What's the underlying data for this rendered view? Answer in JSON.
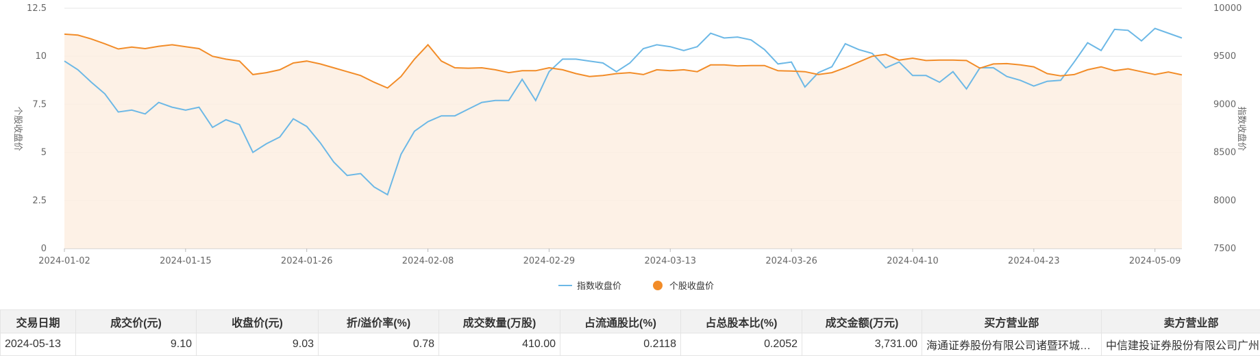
{
  "chart_data": {
    "type": "line",
    "x": [
      "2024-01-02",
      "2024-01-03",
      "2024-01-04",
      "2024-01-05",
      "2024-01-08",
      "2024-01-09",
      "2024-01-10",
      "2024-01-11",
      "2024-01-12",
      "2024-01-15",
      "2024-01-16",
      "2024-01-17",
      "2024-01-18",
      "2024-01-19",
      "2024-01-22",
      "2024-01-23",
      "2024-01-24",
      "2024-01-25",
      "2024-01-26",
      "2024-01-29",
      "2024-01-30",
      "2024-01-31",
      "2024-02-01",
      "2024-02-02",
      "2024-02-05",
      "2024-02-06",
      "2024-02-07",
      "2024-02-08",
      "2024-02-19",
      "2024-02-20",
      "2024-02-21",
      "2024-02-22",
      "2024-02-23",
      "2024-02-26",
      "2024-02-27",
      "2024-02-28",
      "2024-02-29",
      "2024-03-01",
      "2024-03-04",
      "2024-03-05",
      "2024-03-06",
      "2024-03-07",
      "2024-03-08",
      "2024-03-11",
      "2024-03-12",
      "2024-03-13",
      "2024-03-14",
      "2024-03-15",
      "2024-03-18",
      "2024-03-19",
      "2024-03-20",
      "2024-03-21",
      "2024-03-22",
      "2024-03-25",
      "2024-03-26",
      "2024-03-27",
      "2024-03-28",
      "2024-03-29",
      "2024-04-01",
      "2024-04-02",
      "2024-04-03",
      "2024-04-08",
      "2024-04-09",
      "2024-04-10",
      "2024-04-11",
      "2024-04-12",
      "2024-04-15",
      "2024-04-16",
      "2024-04-17",
      "2024-04-18",
      "2024-04-19",
      "2024-04-22",
      "2024-04-23",
      "2024-04-24",
      "2024-04-25",
      "2024-04-26",
      "2024-04-29",
      "2024-04-30",
      "2024-05-06",
      "2024-05-07",
      "2024-05-08",
      "2024-05-09",
      "2024-05-10",
      "2024-05-13"
    ],
    "x_ticks": [
      "2024-01-02",
      "2024-01-15",
      "2024-01-26",
      "2024-02-08",
      "2024-02-29",
      "2024-03-13",
      "2024-03-26",
      "2024-04-10",
      "2024-04-23",
      "2024-05-09"
    ],
    "y_left": {
      "label": "个股收盘价",
      "lim": [
        0,
        12.5
      ],
      "ticks": [
        "0",
        "2.5",
        "5",
        "7.5",
        "10",
        "12.5"
      ]
    },
    "y_right": {
      "label": "指数收盘价",
      "lim": [
        7500,
        10000
      ],
      "ticks": [
        "7500",
        "8000",
        "8500",
        "9000",
        "9500",
        "10000"
      ]
    },
    "series": [
      {
        "name": "指数收盘价",
        "axis": "right",
        "color": "#6cb8e6",
        "values": [
          9450,
          9360,
          9230,
          9110,
          8920,
          8940,
          8900,
          9020,
          8970,
          8940,
          8970,
          8760,
          8840,
          8790,
          8500,
          8590,
          8660,
          8850,
          8770,
          8600,
          8400,
          8260,
          8280,
          8140,
          8060,
          8480,
          8720,
          8820,
          8880,
          8880,
          8950,
          9020,
          9040,
          9040,
          9260,
          9040,
          9340,
          9470,
          9470,
          9450,
          9430,
          9340,
          9430,
          9580,
          9620,
          9600,
          9560,
          9600,
          9740,
          9690,
          9700,
          9670,
          9570,
          9420,
          9440,
          9180,
          9330,
          9390,
          9630,
          9570,
          9530,
          9380,
          9440,
          9300,
          9300,
          9230,
          9340,
          9160,
          9380,
          9380,
          9290,
          9250,
          9190,
          9240,
          9250,
          9440,
          9640,
          9560,
          9780,
          9770,
          9660,
          9790,
          9740,
          9690
        ]
      },
      {
        "name": "个股收盘价",
        "axis": "left",
        "color": "#f28c28",
        "values": [
          11.15,
          11.1,
          10.9,
          10.65,
          10.38,
          10.48,
          10.4,
          10.52,
          10.6,
          10.5,
          10.4,
          10.0,
          9.85,
          9.75,
          9.05,
          9.15,
          9.3,
          9.65,
          9.75,
          9.6,
          9.4,
          9.2,
          9.0,
          8.65,
          8.35,
          8.95,
          9.85,
          10.6,
          9.75,
          9.4,
          9.38,
          9.4,
          9.3,
          9.15,
          9.25,
          9.25,
          9.4,
          9.3,
          9.1,
          8.95,
          9.0,
          9.1,
          9.15,
          9.05,
          9.3,
          9.25,
          9.3,
          9.2,
          9.55,
          9.55,
          9.5,
          9.52,
          9.52,
          9.25,
          9.23,
          9.2,
          9.05,
          9.15,
          9.4,
          9.7,
          10.0,
          10.1,
          9.8,
          9.9,
          9.78,
          9.8,
          9.8,
          9.78,
          9.38,
          9.6,
          9.62,
          9.55,
          9.45,
          9.1,
          8.98,
          9.05,
          9.3,
          9.45,
          9.25,
          9.35,
          9.2,
          9.05,
          9.18,
          9.03
        ]
      }
    ]
  },
  "legend": {
    "items": [
      {
        "label": "指数收盘价",
        "color": "#6cb8e6"
      },
      {
        "label": "个股收盘价",
        "color": "#f28c28"
      }
    ]
  },
  "table": {
    "headers": [
      "交易日期",
      "成交价(元)",
      "收盘价(元)",
      "折/溢价率(%)",
      "成交数量(万股)",
      "占流通股比(%)",
      "占总股本比(%)",
      "成交金额(万元)",
      "买方营业部",
      "卖方营业部"
    ],
    "rows": [
      [
        "2024-05-13",
        "9.10",
        "9.03",
        "0.78",
        "410.00",
        "0.2118",
        "0.2052",
        "3,731.00",
        "海通证券股份有限公司诸暨环城东...",
        "中信建投证券股份有限公司广州..."
      ]
    ]
  }
}
